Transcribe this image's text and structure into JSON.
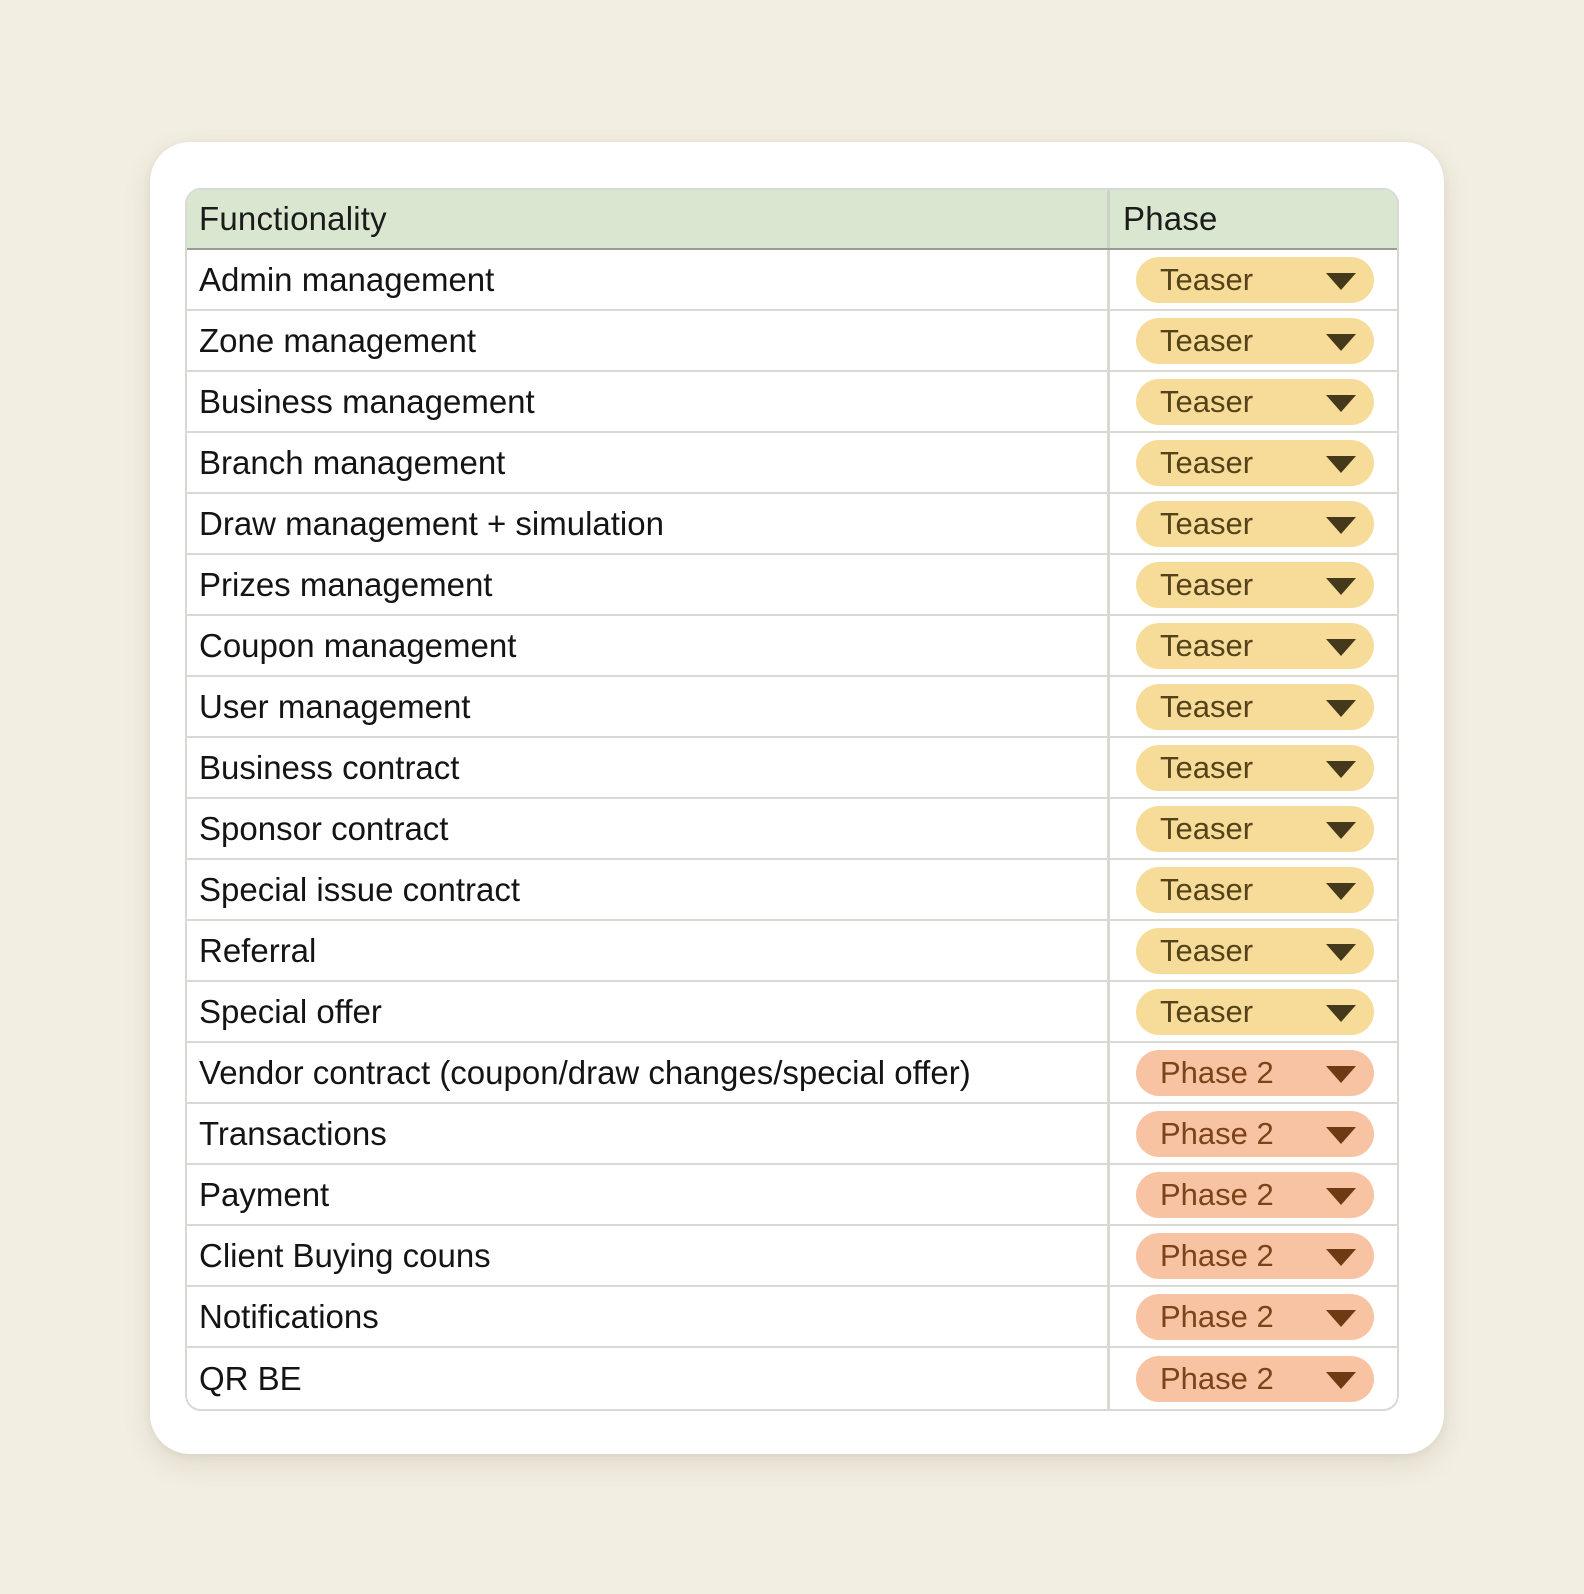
{
  "theme": {
    "page_background": "#f2eee1",
    "card_background": "#ffffff",
    "header_background": "#d9e7d0",
    "row_background": "#ffffff",
    "grid_line": "#d9d9d3",
    "header_underline": "#9b9b95",
    "header_text": "#1b1b1b",
    "cell_text": "#141414"
  },
  "table": {
    "columns": [
      {
        "label": "Functionality"
      },
      {
        "label": "Phase"
      }
    ],
    "rows": [
      {
        "functionality": "Admin management",
        "phase": "Teaser"
      },
      {
        "functionality": "Zone management",
        "phase": "Teaser"
      },
      {
        "functionality": "Business management",
        "phase": "Teaser"
      },
      {
        "functionality": "Branch management",
        "phase": "Teaser"
      },
      {
        "functionality": "Draw management + simulation",
        "phase": "Teaser"
      },
      {
        "functionality": "Prizes management",
        "phase": "Teaser"
      },
      {
        "functionality": "Coupon management",
        "phase": "Teaser"
      },
      {
        "functionality": "User management",
        "phase": "Teaser"
      },
      {
        "functionality": "Business contract",
        "phase": "Teaser"
      },
      {
        "functionality": "Sponsor contract",
        "phase": "Teaser"
      },
      {
        "functionality": "Special issue contract",
        "phase": "Teaser"
      },
      {
        "functionality": "Referral",
        "phase": "Teaser"
      },
      {
        "functionality": "Special offer",
        "phase": "Teaser"
      },
      {
        "functionality": "Vendor contract (coupon/draw changes/special offer)",
        "phase": "Phase 2"
      },
      {
        "functionality": "Transactions",
        "phase": "Phase 2"
      },
      {
        "functionality": "Payment",
        "phase": "Phase 2"
      },
      {
        "functionality": "Client Buying couns",
        "phase": "Phase 2"
      },
      {
        "functionality": "Notifications",
        "phase": "Phase 2"
      },
      {
        "functionality": "QR BE",
        "phase": "Phase 2"
      }
    ]
  },
  "phase_styles": {
    "Teaser": {
      "background": "#f7dc99",
      "text": "#54431a",
      "arrow": "#443a1b"
    },
    "Phase 2": {
      "background": "#f8c3a3",
      "text": "#7c431a",
      "arrow": "#6d3a14"
    }
  }
}
